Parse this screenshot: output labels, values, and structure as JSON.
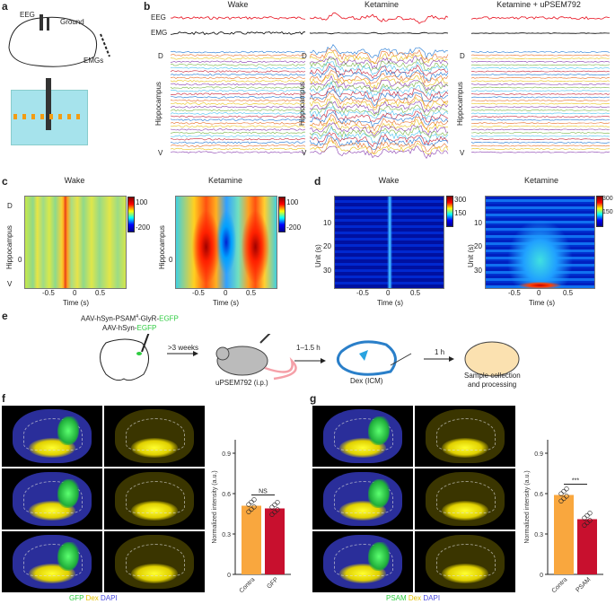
{
  "panels": {
    "a": "a",
    "b": "b",
    "c": "c",
    "d": "d",
    "e": "e",
    "f": "f",
    "g": "g"
  },
  "a": {
    "eeg": "EEG",
    "ground": "Ground",
    "emgs": "EMGs"
  },
  "b": {
    "columns": [
      "Wake",
      "Ketamine",
      "Ketamine + uPSEM792"
    ],
    "eeg": "EEG",
    "emg": "EMG",
    "axis": "Hippocampus",
    "d": "D",
    "v": "V",
    "trace_colors": [
      "#1f77d4",
      "#e8702a",
      "#e8c21a",
      "#8a3fb0",
      "#7ab648",
      "#4cc3f0",
      "#c8233a"
    ]
  },
  "c": {
    "titles": [
      "Wake",
      "Ketamine"
    ],
    "ylabel": "Hippocampus",
    "d": "D",
    "v": "V",
    "ytick": "0",
    "xticks": [
      "-0.5",
      "0",
      "0.5"
    ],
    "xlabel": "Time (s)",
    "cbar_ticks": [
      "100",
      "-200"
    ]
  },
  "d": {
    "titles": [
      "Wake",
      "Ketamine"
    ],
    "ylabel": "Unit (s)",
    "yticks": [
      "10",
      "20",
      "30"
    ],
    "xticks": [
      "-0.5",
      "0",
      "0.5"
    ],
    "xlabel": "Time (s)",
    "cbar_ticks": [
      "300",
      "150"
    ]
  },
  "e": {
    "construct1_prefix": "AAV-hSyn-PSAM",
    "construct1_sup": "4",
    "construct1_mid": "-GlyR-",
    "construct1_tag": "EGFP",
    "construct2_prefix": "AAV-hSyn-",
    "construct2_tag": "EGFP",
    "step1": ">3 weeks",
    "drug": "uPSEM792 (i.p.)",
    "step2": "1–1.5 h",
    "dex": "Dex (ICM)",
    "step3": "1 h",
    "final1": "Sample collection",
    "final2": "and processing"
  },
  "f": {
    "legend": [
      "GFP",
      "Dex",
      "DAPI"
    ],
    "sig": "NS"
  },
  "g": {
    "legend": [
      "PSAM",
      "Dex",
      "DAPI"
    ],
    "sig": "***"
  },
  "colors": {
    "contra": "#f9a73e",
    "treated": "#c8102e",
    "green": "#2ecc40",
    "yellow": "#e6c200",
    "blue": "#4a4adf"
  },
  "chart_data": [
    {
      "type": "bar",
      "panel": "f",
      "categories": [
        "Contra",
        "GFP"
      ],
      "values": [
        0.51,
        0.49
      ],
      "ylabel": "Normalized intensity (a.u.)",
      "yticks": [
        "0",
        "0.3",
        "0.6",
        "0.9"
      ],
      "ylim": [
        0,
        1.0
      ],
      "annotation": "NS"
    },
    {
      "type": "bar",
      "panel": "g",
      "categories": [
        "Contra",
        "PSAM"
      ],
      "values": [
        0.59,
        0.41
      ],
      "ylabel": "Normalized intensity (a.u.)",
      "yticks": [
        "0",
        "0.3",
        "0.6",
        "0.9"
      ],
      "ylim": [
        0,
        1.0
      ],
      "annotation": "***"
    }
  ]
}
